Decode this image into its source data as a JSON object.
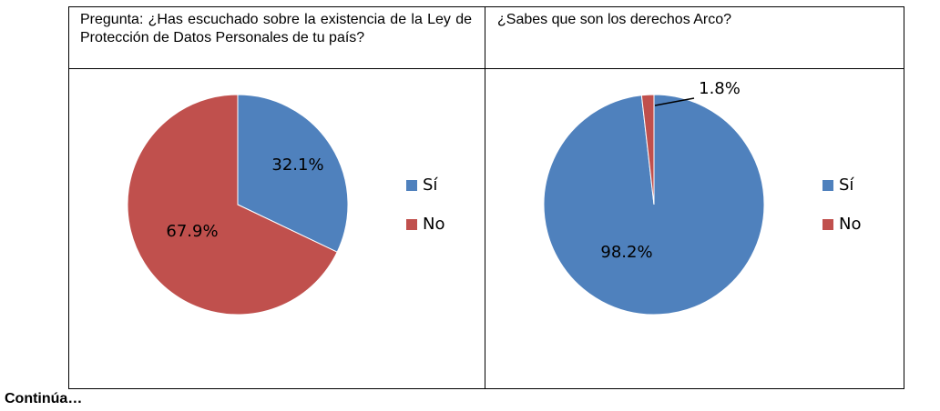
{
  "questions": {
    "q1": "Pregunta: ¿Has escuchado sobre la existencia de la Ley de Protección de Datos Personales de tu país?",
    "q2": "¿Sabes que son los derechos Arco?"
  },
  "footer": "Continúa…",
  "colors": {
    "si": "#4F81BD",
    "no": "#C0504D"
  },
  "chart_data": [
    {
      "type": "pie",
      "categories": [
        "Sí",
        "No"
      ],
      "values": [
        32.1,
        67.9
      ],
      "data_labels": [
        "32.1%",
        "67.9%"
      ],
      "legend": [
        "Sí",
        "No"
      ],
      "legend_position": "right"
    },
    {
      "type": "pie",
      "categories": [
        "Sí",
        "No"
      ],
      "values": [
        98.2,
        1.8
      ],
      "data_labels": [
        "98.2%",
        "1.8%"
      ],
      "legend": [
        "Sí",
        "No"
      ],
      "legend_position": "right"
    }
  ]
}
